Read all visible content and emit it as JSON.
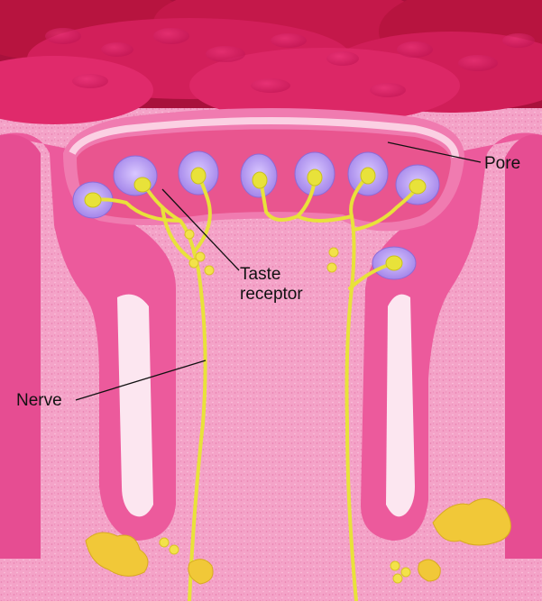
{
  "labels": {
    "pore": "Pore",
    "taste_line1": "Taste",
    "taste_line2": "receptor",
    "nerve": "Nerve"
  },
  "colors": {
    "dark_tissue": "#b3123f",
    "top_papilla": "#e1307a",
    "tissue_pink": "#ec5a9c",
    "inner_pink": "#f58ebf",
    "light_pink": "#f9b8d6",
    "receptor_purple": "#b79cf0",
    "nerve_yellow": "#e8e23a",
    "fat_yellow": "#f1c838"
  }
}
